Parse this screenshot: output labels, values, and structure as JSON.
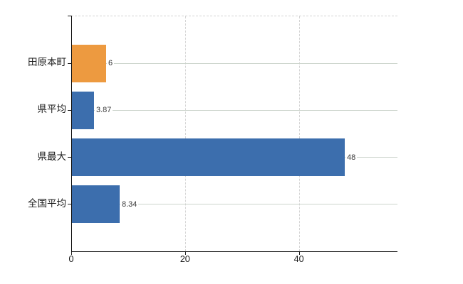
{
  "chart_data": {
    "type": "bar",
    "orientation": "horizontal",
    "title": "",
    "xlabel": "",
    "ylabel": "",
    "categories": [
      "田原本町",
      "県平均",
      "県最大",
      "全国平均"
    ],
    "values": [
      6,
      3.87,
      48,
      8.34
    ],
    "value_labels": [
      "6",
      "3.87",
      "48",
      "8.34"
    ],
    "bar_colors": [
      "#ed9a40",
      "#3c6ead",
      "#3c6ead",
      "#3c6ead"
    ],
    "x_ticks": [
      0,
      20,
      40
    ],
    "x_tick_labels": [
      "0",
      "20",
      "40"
    ],
    "xlim": [
      0,
      57.2
    ],
    "grid": true,
    "legend": false
  },
  "colors": {
    "background": "#ffffff",
    "axis_line": "#000000",
    "vertical_gridline": "#d3d3d3",
    "horizontal_rowline": "#ccd4cc",
    "highlight_bar": "#ed9a40",
    "default_bar": "#3c6ead",
    "value_text": "#3a3a3a",
    "label_text": "#1a1a1a"
  }
}
